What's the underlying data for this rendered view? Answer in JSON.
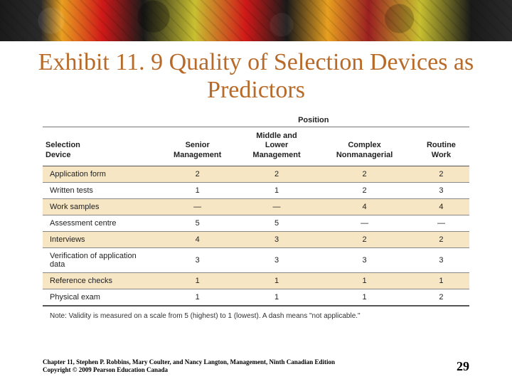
{
  "title": {
    "text": "Exhibit 11. 9 Quality of Selection Devices as Predictors",
    "fontsize": 34,
    "color": "#b86a28"
  },
  "table": {
    "group_header": "Position",
    "columns": [
      "Selection Device",
      "Senior Management",
      "Middle and Lower Management",
      "Complex Nonmanagerial",
      "Routine Work"
    ],
    "rows": [
      {
        "label": "Application form",
        "cells": [
          "2",
          "2",
          "2",
          "2"
        ],
        "alt": true
      },
      {
        "label": "Written tests",
        "cells": [
          "1",
          "1",
          "2",
          "3"
        ],
        "alt": false
      },
      {
        "label": "Work samples",
        "cells": [
          "—",
          "—",
          "4",
          "4"
        ],
        "alt": true
      },
      {
        "label": "Assessment centre",
        "cells": [
          "5",
          "5",
          "—",
          "—"
        ],
        "alt": false
      },
      {
        "label": "Interviews",
        "cells": [
          "4",
          "3",
          "2",
          "2"
        ],
        "alt": true
      },
      {
        "label": "Verification of application data",
        "cells": [
          "3",
          "3",
          "3",
          "3"
        ],
        "alt": false
      },
      {
        "label": "Reference checks",
        "cells": [
          "1",
          "1",
          "1",
          "1"
        ],
        "alt": true
      },
      {
        "label": "Physical exam",
        "cells": [
          "1",
          "1",
          "1",
          "2"
        ],
        "alt": false
      }
    ],
    "note": "Note: Validity is measured on a scale from 5 (highest) to 1 (lowest). A dash means \"not applicable.\"",
    "alt_bg": "#f7e6c4",
    "border_color": "#888888"
  },
  "footer": {
    "credit_line1": "Chapter 11, Stephen P. Robbins, Mary Coulter, and Nancy Langton, Management, Ninth Canadian Edition",
    "credit_line2": "Copyright © 2009 Pearson Education Canada",
    "page_number": "29",
    "page_fontsize": 18
  }
}
